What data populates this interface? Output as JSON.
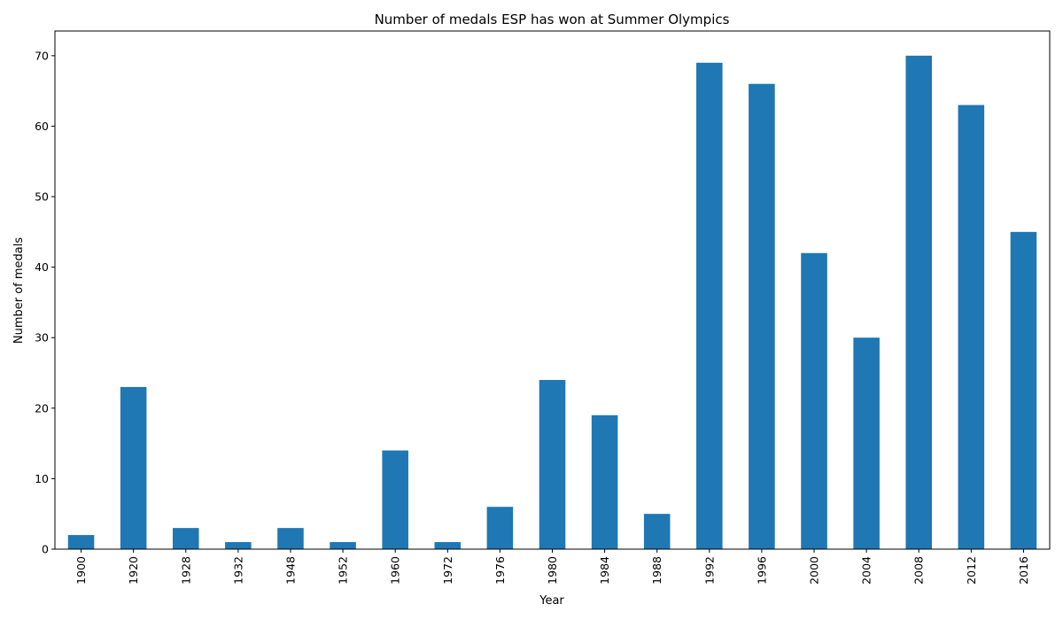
{
  "chart_data": {
    "type": "bar",
    "title": "Number of medals ESP has won at Summer Olympics",
    "xlabel": "Year",
    "ylabel": "Number of medals",
    "categories": [
      "1900",
      "1920",
      "1928",
      "1932",
      "1948",
      "1952",
      "1960",
      "1972",
      "1976",
      "1980",
      "1984",
      "1988",
      "1992",
      "1996",
      "2000",
      "2004",
      "2008",
      "2012",
      "2016"
    ],
    "values": [
      2,
      23,
      3,
      1,
      3,
      1,
      14,
      1,
      6,
      24,
      19,
      5,
      69,
      66,
      42,
      30,
      70,
      63,
      45
    ],
    "ylim": [
      0,
      73.5
    ],
    "yticks": [
      0,
      10,
      20,
      30,
      40,
      50,
      60,
      70
    ],
    "grid": false,
    "legend": "none",
    "bar_color": "#1f77b4"
  }
}
